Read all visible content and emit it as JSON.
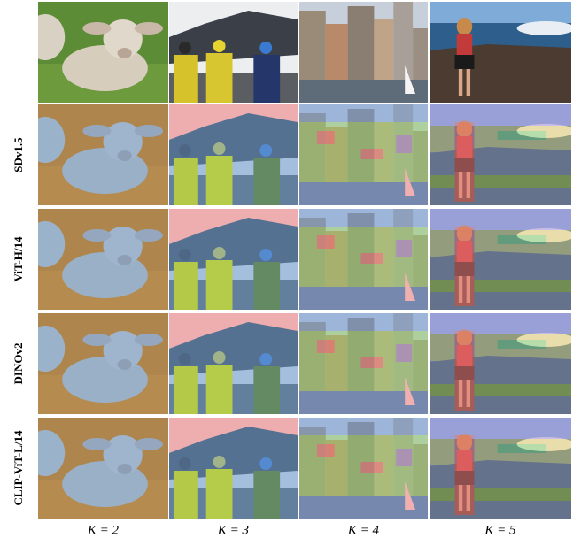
{
  "row_labels": [
    "SDv1.5",
    "ViT-H/14",
    "DINOv2",
    "CLIP-ViT-L/14"
  ],
  "column_labels": [
    "K = 2",
    "K = 3",
    "K = 4",
    "K = 5"
  ]
}
